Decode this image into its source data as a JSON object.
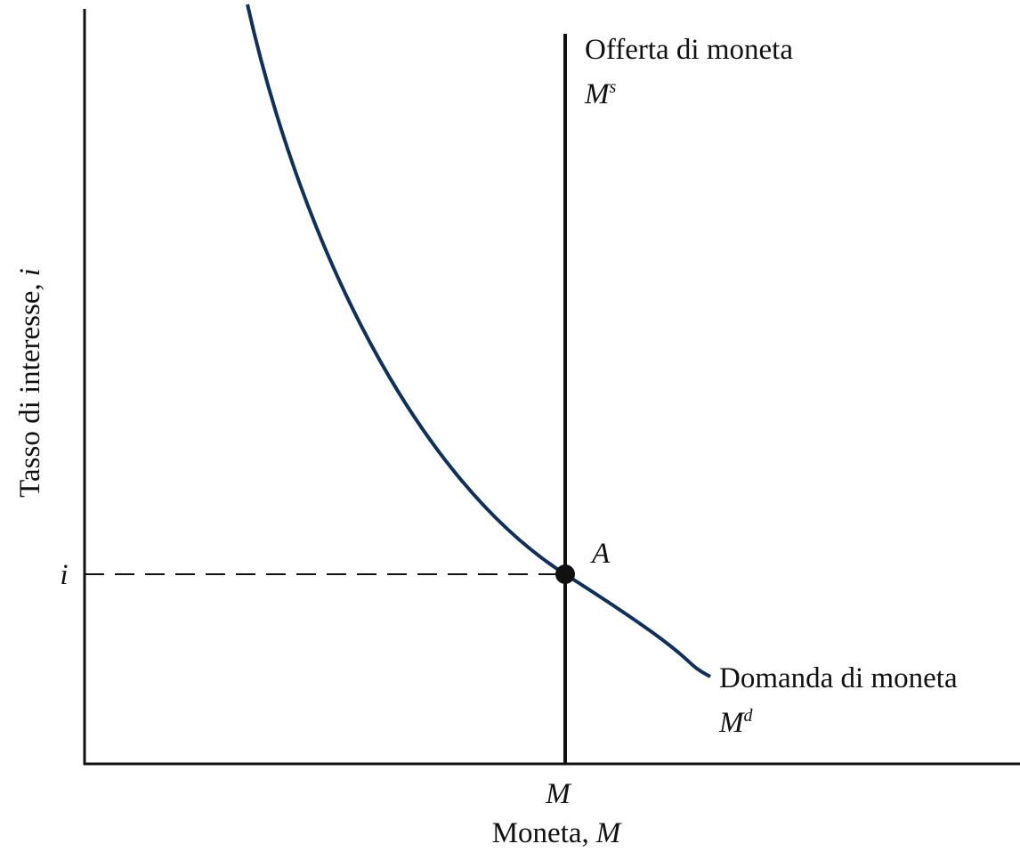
{
  "axes": {
    "y_label": {
      "text": "Tasso di interesse,",
      "symbol": "i"
    },
    "x_label": {
      "text": "Moneta,",
      "symbol": "M"
    },
    "y_tick": "i",
    "x_tick": "M"
  },
  "curves": {
    "supply": {
      "label": "Offerta di moneta",
      "symbol": "M",
      "superscript": "s"
    },
    "demand": {
      "label": "Domanda di moneta",
      "symbol": "M",
      "superscript": "d"
    }
  },
  "point": {
    "label": "A"
  }
}
